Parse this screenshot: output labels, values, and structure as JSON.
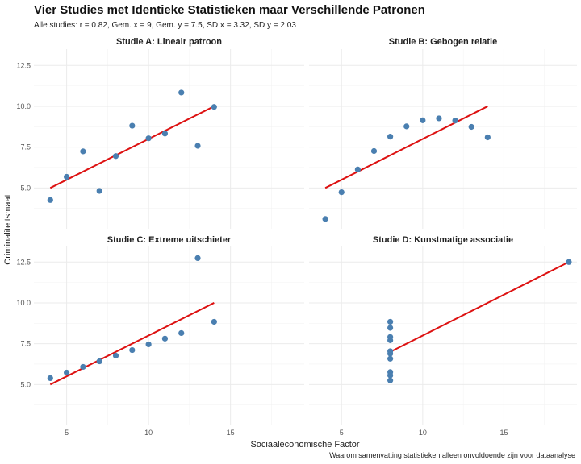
{
  "page": {
    "title": "Vier Studies met Identieke Statistieken maar Verschillende Patronen",
    "subtitle": "Alle studies: r = 0.82, Gem. x = 9, Gem. y = 7.5, SD x = 3.32, SD y = 2.03",
    "xlabel": "Sociaaleconomische Factor",
    "ylabel": "Criminaliteitsmaat",
    "caption": "Waarom samenvatting statistieken alleen onvoldoende zijn voor dataanalyse"
  },
  "chart_data": [
    {
      "type": "scatter",
      "title": "Studie A: Lineair patroon",
      "x": [
        10,
        8,
        13,
        9,
        11,
        14,
        6,
        4,
        12,
        7,
        5
      ],
      "y": [
        8.04,
        6.95,
        7.58,
        8.81,
        8.33,
        9.96,
        7.24,
        4.26,
        10.84,
        4.82,
        5.68
      ],
      "fit": {
        "x": [
          4,
          14
        ],
        "y": [
          5.0,
          10.0
        ]
      },
      "xlim": [
        3,
        19.5
      ],
      "ylim": [
        2.5,
        13.5
      ],
      "xticks": [
        5,
        10,
        15
      ],
      "yticks": [
        "5.0",
        "7.5",
        "10.0",
        "12.5"
      ],
      "grid": true
    },
    {
      "type": "scatter",
      "title": "Studie B: Gebogen relatie",
      "x": [
        10,
        8,
        13,
        9,
        11,
        14,
        6,
        4,
        12,
        7,
        5
      ],
      "y": [
        9.14,
        8.14,
        8.74,
        8.77,
        9.26,
        8.1,
        6.13,
        3.1,
        9.13,
        7.26,
        4.74
      ],
      "fit": {
        "x": [
          4,
          14
        ],
        "y": [
          5.0,
          10.0
        ]
      },
      "xlim": [
        3,
        19.5
      ],
      "ylim": [
        2.5,
        13.5
      ],
      "xticks": [
        5,
        10,
        15
      ],
      "yticks": [
        "5.0",
        "7.5",
        "10.0",
        "12.5"
      ],
      "grid": true
    },
    {
      "type": "scatter",
      "title": "Studie C: Extreme uitschieter",
      "x": [
        10,
        8,
        13,
        9,
        11,
        14,
        6,
        4,
        12,
        7,
        5
      ],
      "y": [
        7.46,
        6.77,
        12.74,
        7.11,
        7.81,
        8.84,
        6.08,
        5.39,
        8.15,
        6.42,
        5.73
      ],
      "fit": {
        "x": [
          4,
          14
        ],
        "y": [
          5.0,
          10.0
        ]
      },
      "xlim": [
        3,
        19.5
      ],
      "ylim": [
        2.5,
        13.5
      ],
      "xticks": [
        5,
        10,
        15
      ],
      "yticks": [
        "5.0",
        "7.5",
        "10.0",
        "12.5"
      ],
      "grid": true
    },
    {
      "type": "scatter",
      "title": "Studie D: Kunstmatige associatie",
      "x": [
        8,
        8,
        8,
        8,
        8,
        8,
        8,
        19,
        8,
        8,
        8
      ],
      "y": [
        6.58,
        5.76,
        7.71,
        8.84,
        8.47,
        7.04,
        5.25,
        12.5,
        5.56,
        7.91,
        6.89
      ],
      "fit": {
        "x": [
          8,
          19
        ],
        "y": [
          7.0,
          12.5
        ]
      },
      "xlim": [
        3,
        19.5
      ],
      "ylim": [
        2.5,
        13.5
      ],
      "xticks": [
        5,
        10,
        15
      ],
      "yticks": [
        "5.0",
        "7.5",
        "10.0",
        "12.5"
      ],
      "grid": true
    }
  ],
  "colors": {
    "point": "#4a7fb0",
    "fit_line": "#dd1111",
    "grid": "#ebebeb",
    "background": "#ffffff"
  }
}
